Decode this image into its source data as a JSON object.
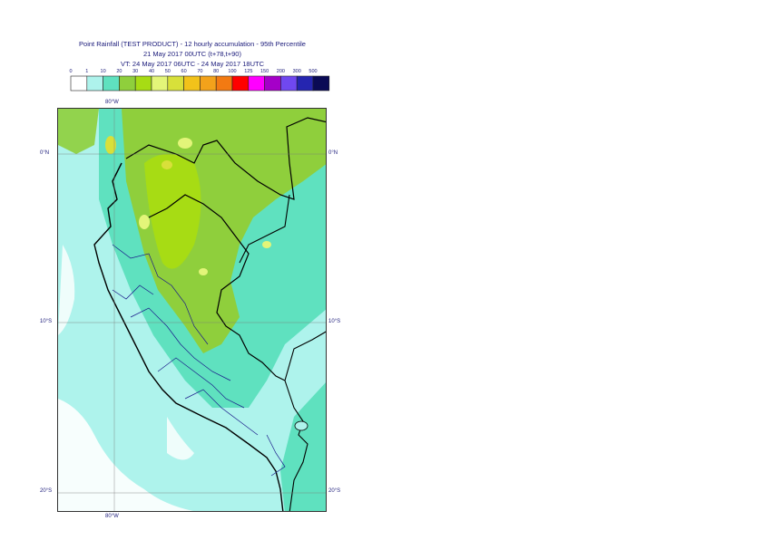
{
  "header": {
    "title": "Point Rainfall (TEST PRODUCT) - 12 hourly accumulation - 95th Percentile",
    "base_time": "21 May 2017 00UTC (t+78,t+90)",
    "valid_time": "VT: 24 May 2017 06UTC - 24 May 2017 18UTC"
  },
  "legend": {
    "labels": [
      "0",
      "1",
      "10",
      "20",
      "30",
      "40",
      "50",
      "60",
      "70",
      "80",
      "100",
      "125",
      "150",
      "200",
      "300",
      "500"
    ],
    "colors": [
      "#ffffff",
      "#aef3ec",
      "#5fe1bf",
      "#8fcf3c",
      "#a7dc14",
      "#e3f579",
      "#d8e03a",
      "#f2c21a",
      "#f3a21b",
      "#f37a12",
      "#ff0000",
      "#ff00ff",
      "#a500c8",
      "#7048f0",
      "#2525b0",
      "#0a0a55"
    ]
  },
  "map": {
    "lon_label_top": "80°W",
    "lon_label_bottom": "80°W",
    "lat_labels": [
      "0°N",
      "10°S",
      "20°S"
    ]
  }
}
